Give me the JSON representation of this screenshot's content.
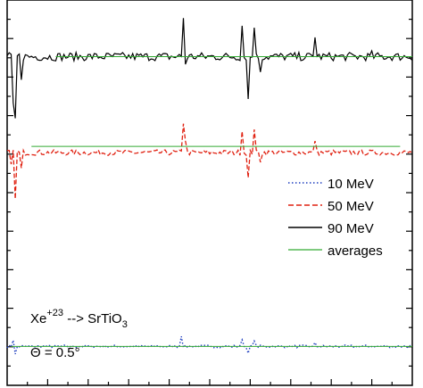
{
  "chart_data": {
    "type": "line",
    "title": "",
    "xlabel": "",
    "ylabel": "",
    "x_range": [
      0,
      100
    ],
    "y_range": [
      0,
      100
    ],
    "grid": false,
    "legend_position": "right",
    "colors": {
      "10 MeV": "#1f3fbf",
      "50 MeV": "#e02010",
      "90 MeV": "#000000",
      "averages": "#33aa33"
    },
    "series": [
      {
        "name": "10 MeV",
        "style": "dotted",
        "baseline": 10.1,
        "spikes": [
          [
            1.5,
            1.6
          ],
          [
            2.0,
            -2.0
          ],
          [
            43.0,
            2.6
          ],
          [
            58.0,
            1.7
          ],
          [
            59.5,
            -1.8
          ],
          [
            61.0,
            1.4
          ],
          [
            76.0,
            1.0
          ]
        ]
      },
      {
        "name": "50 MeV",
        "style": "dashed",
        "baseline": 60.4,
        "spikes": [
          [
            1.0,
            -3.0
          ],
          [
            2.0,
            -12.0
          ],
          [
            3.5,
            -4.0
          ],
          [
            43.5,
            7.5
          ],
          [
            44.0,
            3.0
          ],
          [
            58.0,
            5.5
          ],
          [
            59.5,
            -6.5
          ],
          [
            61.0,
            6.0
          ],
          [
            62.5,
            -2.5
          ],
          [
            76.0,
            3.0
          ]
        ]
      },
      {
        "name": "90 MeV",
        "style": "solid",
        "baseline": 85.3,
        "spikes": [
          [
            1.5,
            -12.0
          ],
          [
            2.0,
            -16.0
          ],
          [
            3.5,
            -6.0
          ],
          [
            43.5,
            10.0
          ],
          [
            44.0,
            -2.0
          ],
          [
            58.0,
            8.0
          ],
          [
            59.5,
            -11.0
          ],
          [
            61.0,
            7.5
          ],
          [
            62.5,
            -4.0
          ],
          [
            76.0,
            5.0
          ],
          [
            90.0,
            1.5
          ]
        ]
      },
      {
        "name": "averages",
        "style": "solid-thin",
        "segments": [
          {
            "x": [
              12,
              100
            ],
            "y": [
              85.3,
              85.3
            ]
          },
          {
            "x": [
              6,
              97
            ],
            "y": [
              62.0,
              62.0
            ]
          },
          {
            "x": [
              1,
              100
            ],
            "y": [
              10.1,
              10.1
            ]
          }
        ]
      }
    ],
    "legend": [
      "10 MeV",
      "50 MeV",
      "90 MeV",
      "averages"
    ],
    "annotations": [
      {
        "base": "Xe",
        "sup": "+23",
        "mid": " --> SrTiO",
        "sub": "3"
      },
      {
        "text": "Θ = 0.5°"
      }
    ]
  }
}
